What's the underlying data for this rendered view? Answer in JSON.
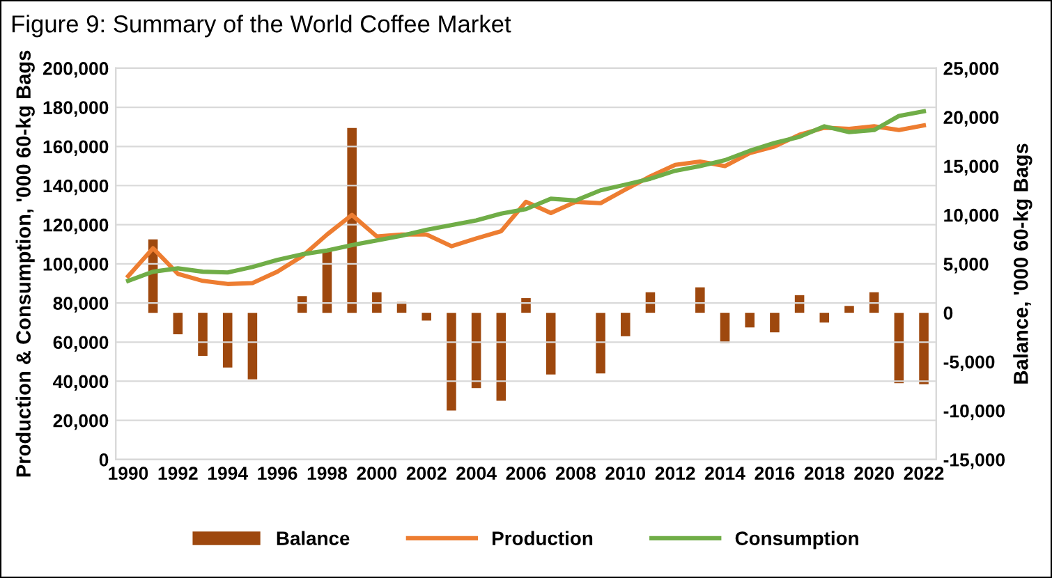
{
  "chart_data": {
    "type": "line",
    "title": "Figure 9: Summary of the World Coffee Market",
    "ylabel": "Production & Consumption, '000 60-kg Bags",
    "y2label": "Balance, '000 60-kg Bags",
    "x": [
      1990,
      1991,
      1992,
      1993,
      1994,
      1995,
      1996,
      1997,
      1998,
      1999,
      2000,
      2001,
      2002,
      2003,
      2004,
      2005,
      2006,
      2007,
      2008,
      2009,
      2010,
      2011,
      2012,
      2013,
      2014,
      2015,
      2016,
      2017,
      2018,
      2019,
      2020,
      2021,
      2022
    ],
    "series": [
      {
        "name": "Balance",
        "type": "bar",
        "axis": "y2",
        "color": "#9e480e",
        "values": [
          null,
          7500,
          -2200,
          -4400,
          -5600,
          -6800,
          null,
          1700,
          6400,
          18900,
          2100,
          1100,
          -800,
          -10000,
          -7700,
          -9000,
          1500,
          -6300,
          null,
          -6200,
          -2400,
          2100,
          null,
          2600,
          -3100,
          -1500,
          -2000,
          1800,
          -1000,
          700,
          2100,
          -7200,
          -7300
        ]
      },
      {
        "name": "Production",
        "color": "#ed7d31",
        "values": [
          93700,
          108000,
          94900,
          91300,
          89700,
          90200,
          96000,
          103900,
          115000,
          125000,
          114000,
          115000,
          115000,
          109000,
          113000,
          116700,
          131700,
          126000,
          131700,
          131000,
          138000,
          144700,
          150600,
          152300,
          150000,
          156600,
          160000,
          166000,
          169600,
          169000,
          170300,
          168400,
          170800
        ]
      },
      {
        "name": "Consumption",
        "color": "#70ad47",
        "values": [
          91300,
          96000,
          97700,
          96000,
          95600,
          98400,
          102000,
          104900,
          106800,
          109600,
          112000,
          114400,
          117400,
          119800,
          122200,
          125700,
          128000,
          133300,
          132400,
          137600,
          140500,
          143500,
          147600,
          150000,
          153000,
          157800,
          161800,
          164900,
          170300,
          167300,
          168400,
          175600,
          178000
        ]
      }
    ],
    "xlim": [
      1989.5,
      2022.5
    ],
    "xticks": [
      1990,
      1992,
      1994,
      1996,
      1998,
      2000,
      2002,
      2004,
      2006,
      2008,
      2010,
      2012,
      2014,
      2016,
      2018,
      2020,
      2022
    ],
    "ylim": [
      0,
      200000
    ],
    "yticks": [
      {
        "value": 0,
        "label": "0"
      },
      {
        "value": 20000,
        "label": "20,000"
      },
      {
        "value": 40000,
        "label": "40,000"
      },
      {
        "value": 60000,
        "label": "60,000"
      },
      {
        "value": 80000,
        "label": "80,000"
      },
      {
        "value": 100000,
        "label": "100,000"
      },
      {
        "value": 120000,
        "label": "120,000"
      },
      {
        "value": 140000,
        "label": "140,000"
      },
      {
        "value": 160000,
        "label": "160,000"
      },
      {
        "value": 180000,
        "label": "180,000"
      },
      {
        "value": 200000,
        "label": "200,000"
      }
    ],
    "y2lim": [
      -15000,
      25000
    ],
    "y2ticks": [
      {
        "value": -15000,
        "label": "-15,000"
      },
      {
        "value": -10000,
        "label": "-10,000"
      },
      {
        "value": -5000,
        "label": "-5,000"
      },
      {
        "value": 0,
        "label": "0"
      },
      {
        "value": 5000,
        "label": "5,000"
      },
      {
        "value": 10000,
        "label": "10,000"
      },
      {
        "value": 15000,
        "label": "15,000"
      },
      {
        "value": 20000,
        "label": "20,000"
      },
      {
        "value": 25000,
        "label": "25,000"
      }
    ],
    "grid": "y",
    "legend": "bottom"
  }
}
